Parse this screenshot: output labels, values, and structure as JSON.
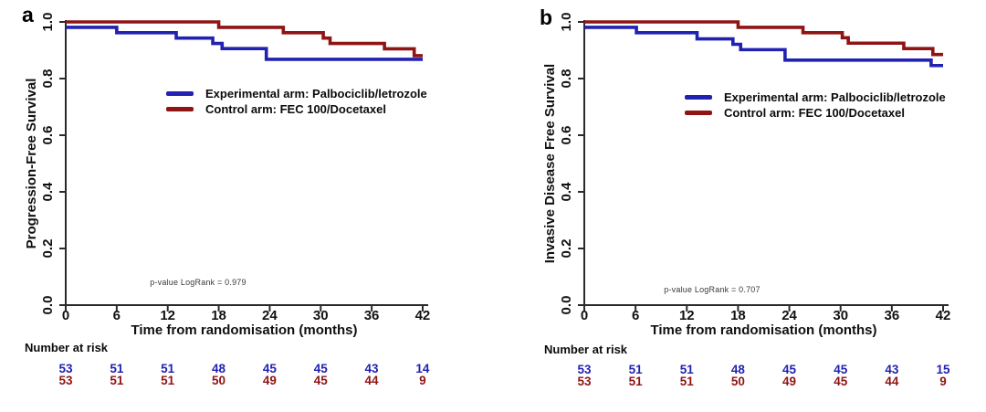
{
  "colors": {
    "experimental": "#2121b2",
    "control": "#8f1414",
    "axis": "#2a2a2a",
    "background": "#ffffff"
  },
  "chart_data": [
    {
      "type": "line",
      "subtype": "kaplan-meier-step",
      "panel_letter": "a",
      "title": "",
      "xlabel": "Time from randomisation (months)",
      "ylabel": "Progression-Free Survival",
      "annotation": "p-value LogRank = 0.979",
      "xlim": [
        0,
        42
      ],
      "ylim": [
        0.0,
        1.0
      ],
      "grid": false,
      "legend_position": "center",
      "x_tick_values": [
        0,
        6,
        12,
        18,
        24,
        30,
        36,
        42
      ],
      "x_tick_labels": [
        "0",
        "6",
        "12",
        "18",
        "24",
        "30",
        "36",
        "42"
      ],
      "y_tick_values": [
        1.0,
        0.8,
        0.6,
        0.4,
        0.2,
        0.0
      ],
      "y_tick_labels": [
        "1.0",
        "0.8",
        "0.6",
        "0.4",
        "0.2",
        "0.0"
      ],
      "legend": [
        {
          "name": "Experimental arm: Palbociclib/letrozole",
          "color": "#2121b2"
        },
        {
          "name": "Control arm: FEC 100/Docetaxel",
          "color": "#8f1414"
        }
      ],
      "series": [
        {
          "name": "Experimental arm: Palbociclib/letrozole",
          "color": "#2121b2",
          "step_points": [
            [
              0,
              0.981
            ],
            [
              6,
              0.962
            ],
            [
              13,
              0.943
            ],
            [
              17.3,
              0.924
            ],
            [
              18.4,
              0.906
            ],
            [
              23.6,
              0.868
            ],
            [
              42,
              0.868
            ]
          ]
        },
        {
          "name": "Control arm: FEC 100/Docetaxel",
          "color": "#8f1414",
          "step_points": [
            [
              0,
              1.0
            ],
            [
              18,
              0.981
            ],
            [
              25.6,
              0.962
            ],
            [
              30.3,
              0.943
            ],
            [
              31.1,
              0.924
            ],
            [
              37.5,
              0.905
            ],
            [
              41,
              0.881
            ],
            [
              42,
              0.881
            ]
          ]
        }
      ],
      "number_at_risk": {
        "title": "Number at risk",
        "times": [
          0,
          6,
          12,
          18,
          24,
          30,
          36,
          42
        ],
        "rows": [
          {
            "arm": "Experimental",
            "values": [
              "53",
              "51",
              "51",
              "48",
              "45",
              "45",
              "43",
              "14"
            ]
          },
          {
            "arm": "Control",
            "values": [
              "53",
              "51",
              "51",
              "50",
              "49",
              "45",
              "44",
              "9"
            ]
          }
        ]
      }
    },
    {
      "type": "line",
      "subtype": "kaplan-meier-step",
      "panel_letter": "b",
      "title": "",
      "xlabel": "Time from randomisation (months)",
      "ylabel": "Invasive Disease Free Survival",
      "annotation": "p-value LogRank = 0.707",
      "xlim": [
        0,
        42
      ],
      "ylim": [
        0.0,
        1.0
      ],
      "grid": false,
      "legend_position": "center",
      "x_tick_values": [
        0,
        6,
        12,
        18,
        24,
        30,
        36,
        42
      ],
      "x_tick_labels": [
        "0",
        "6",
        "12",
        "18",
        "24",
        "30",
        "36",
        "42"
      ],
      "y_tick_values": [
        1.0,
        0.8,
        0.6,
        0.4,
        0.2,
        0.0
      ],
      "y_tick_labels": [
        "1.0",
        "0.8",
        "0.6",
        "0.4",
        "0.2",
        "0.0"
      ],
      "legend": [
        {
          "name": "Experimental arm: Palbociclib/letrozole",
          "color": "#2121b2"
        },
        {
          "name": "Control arm: FEC 100/Docetaxel",
          "color": "#8f1414"
        }
      ],
      "series": [
        {
          "name": "Experimental arm: Palbociclib/letrozole",
          "color": "#2121b2",
          "step_points": [
            [
              0,
              0.981
            ],
            [
              6.1,
              0.962
            ],
            [
              13.2,
              0.94
            ],
            [
              17.4,
              0.921
            ],
            [
              18.3,
              0.902
            ],
            [
              23.5,
              0.865
            ],
            [
              40.6,
              0.846
            ],
            [
              42,
              0.846
            ]
          ]
        },
        {
          "name": "Control arm: FEC 100/Docetaxel",
          "color": "#8f1414",
          "step_points": [
            [
              0,
              1.0
            ],
            [
              18,
              0.981
            ],
            [
              25.6,
              0.962
            ],
            [
              30.2,
              0.944
            ],
            [
              30.9,
              0.925
            ],
            [
              37.4,
              0.906
            ],
            [
              40.8,
              0.885
            ],
            [
              42,
              0.885
            ]
          ]
        }
      ],
      "number_at_risk": {
        "title": "Number at risk",
        "times": [
          0,
          6,
          12,
          18,
          24,
          30,
          36,
          42
        ],
        "rows": [
          {
            "arm": "Experimental",
            "values": [
              "53",
              "51",
              "51",
              "48",
              "45",
              "45",
              "43",
              "15"
            ]
          },
          {
            "arm": "Control",
            "values": [
              "53",
              "51",
              "51",
              "50",
              "49",
              "45",
              "44",
              "9"
            ]
          }
        ]
      }
    }
  ]
}
